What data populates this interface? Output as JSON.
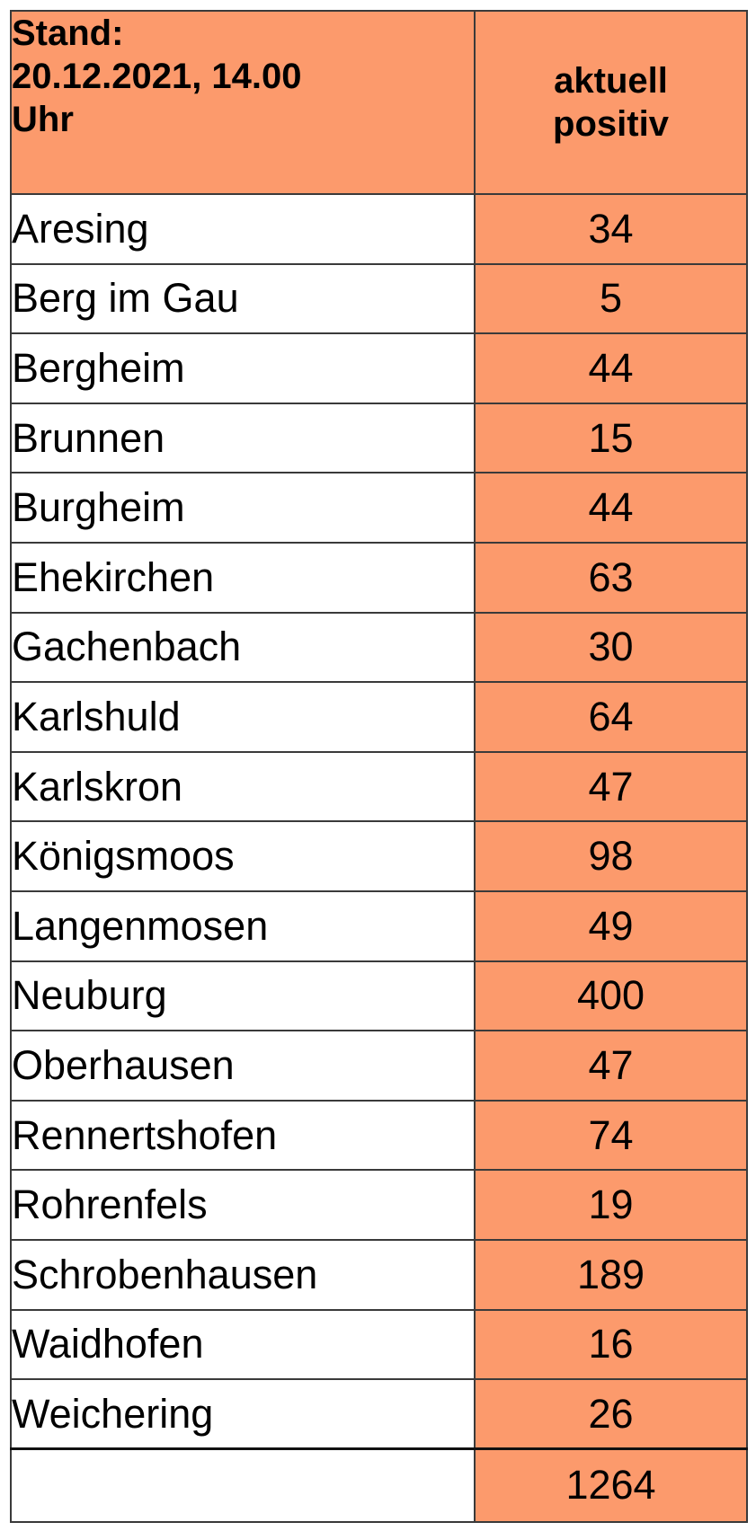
{
  "header": {
    "date_line_1": "Stand:",
    "date_line_2": "20.12.2021, 14.00",
    "date_line_3": "Uhr",
    "col_line_1": "aktuell",
    "col_line_2": "positiv"
  },
  "rows": [
    {
      "name": "Aresing",
      "value": "34"
    },
    {
      "name": "Berg im Gau",
      "value": "5"
    },
    {
      "name": "Bergheim",
      "value": "44"
    },
    {
      "name": "Brunnen",
      "value": "15"
    },
    {
      "name": "Burgheim",
      "value": "44"
    },
    {
      "name": "Ehekirchen",
      "value": "63"
    },
    {
      "name": "Gachenbach",
      "value": "30"
    },
    {
      "name": "Karlshuld",
      "value": "64"
    },
    {
      "name": "Karlskron",
      "value": "47"
    },
    {
      "name": "Königsmoos",
      "value": "98"
    },
    {
      "name": "Langenmosen",
      "value": "49"
    },
    {
      "name": "Neuburg",
      "value": "400"
    },
    {
      "name": "Oberhausen",
      "value": "47"
    },
    {
      "name": "Rennertshofen",
      "value": "74"
    },
    {
      "name": "Rohrenfels",
      "value": "19"
    },
    {
      "name": "Schrobenhausen",
      "value": "189"
    },
    {
      "name": "Waidhofen",
      "value": "16"
    },
    {
      "name": "Weichering",
      "value": "26"
    }
  ],
  "total": {
    "label": "",
    "value": "1264"
  },
  "colors": {
    "accent": "#fc9a6c",
    "border": "#3a3a3a",
    "background": "#ffffff"
  }
}
